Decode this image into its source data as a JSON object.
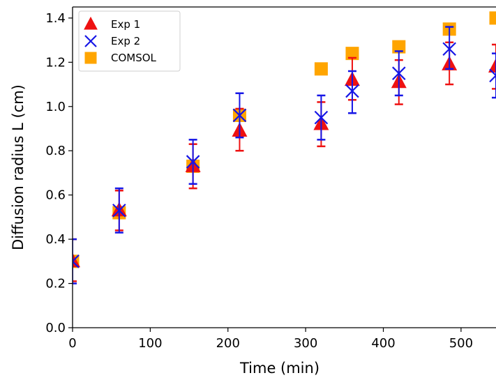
{
  "chart_data": {
    "type": "scatter",
    "title": "",
    "xlabel": "Time (min)",
    "ylabel": "Diffusion radius L (cm)",
    "xlim": [
      0,
      545
    ],
    "ylim": [
      0,
      1.45
    ],
    "xticks": [
      0,
      100,
      200,
      300,
      400,
      500
    ],
    "yticks": [
      0.0,
      0.2,
      0.4,
      0.6,
      0.8,
      1.0,
      1.2,
      1.4
    ],
    "xtick_labels": [
      "0",
      "100",
      "200",
      "300",
      "400",
      "500"
    ],
    "ytick_labels": [
      "0.0",
      "0.2",
      "0.4",
      "0.6",
      "0.8",
      "1.0",
      "1.2",
      "1.4"
    ],
    "grid": false,
    "legend_position": "top-left",
    "series": [
      {
        "name": "Exp 1",
        "marker": "triangle",
        "color": "#ee1111",
        "errorbar_color": "#ee1111",
        "points": [
          {
            "x": 0,
            "y": 0.3,
            "ylo": 0.21,
            "yhi": 0.4
          },
          {
            "x": 60,
            "y": 0.53,
            "ylo": 0.44,
            "yhi": 0.62
          },
          {
            "x": 155,
            "y": 0.73,
            "ylo": 0.63,
            "yhi": 0.83
          },
          {
            "x": 215,
            "y": 0.89,
            "ylo": 0.8,
            "yhi": 0.99
          },
          {
            "x": 320,
            "y": 0.92,
            "ylo": 0.82,
            "yhi": 1.02
          },
          {
            "x": 360,
            "y": 1.12,
            "ylo": 1.03,
            "yhi": 1.22
          },
          {
            "x": 420,
            "y": 1.11,
            "ylo": 1.01,
            "yhi": 1.21
          },
          {
            "x": 485,
            "y": 1.19,
            "ylo": 1.1,
            "yhi": 1.29
          },
          {
            "x": 545,
            "y": 1.18,
            "ylo": 1.08,
            "yhi": 1.28
          }
        ]
      },
      {
        "name": "Exp 2",
        "marker": "x",
        "color": "#1515e6",
        "errorbar_color": "#1515e6",
        "points": [
          {
            "x": 0,
            "y": 0.3,
            "ylo": 0.2,
            "yhi": 0.4
          },
          {
            "x": 60,
            "y": 0.53,
            "ylo": 0.43,
            "yhi": 0.63
          },
          {
            "x": 155,
            "y": 0.75,
            "ylo": 0.65,
            "yhi": 0.85
          },
          {
            "x": 215,
            "y": 0.96,
            "ylo": 0.86,
            "yhi": 1.06
          },
          {
            "x": 320,
            "y": 0.95,
            "ylo": 0.85,
            "yhi": 1.05
          },
          {
            "x": 360,
            "y": 1.07,
            "ylo": 0.97,
            "yhi": 1.16
          },
          {
            "x": 420,
            "y": 1.15,
            "ylo": 1.05,
            "yhi": 1.25
          },
          {
            "x": 485,
            "y": 1.26,
            "ylo": 1.17,
            "yhi": 1.36
          },
          {
            "x": 545,
            "y": 1.14,
            "ylo": 1.04,
            "yhi": 1.24
          }
        ]
      },
      {
        "name": "COMSOL",
        "marker": "square",
        "color": "#ffa500",
        "points": [
          {
            "x": 0,
            "y": 0.3
          },
          {
            "x": 60,
            "y": 0.52
          },
          {
            "x": 155,
            "y": 0.73
          },
          {
            "x": 215,
            "y": 0.96
          },
          {
            "x": 320,
            "y": 1.17
          },
          {
            "x": 360,
            "y": 1.24
          },
          {
            "x": 420,
            "y": 1.27
          },
          {
            "x": 485,
            "y": 1.35
          },
          {
            "x": 545,
            "y": 1.4
          }
        ]
      }
    ]
  }
}
